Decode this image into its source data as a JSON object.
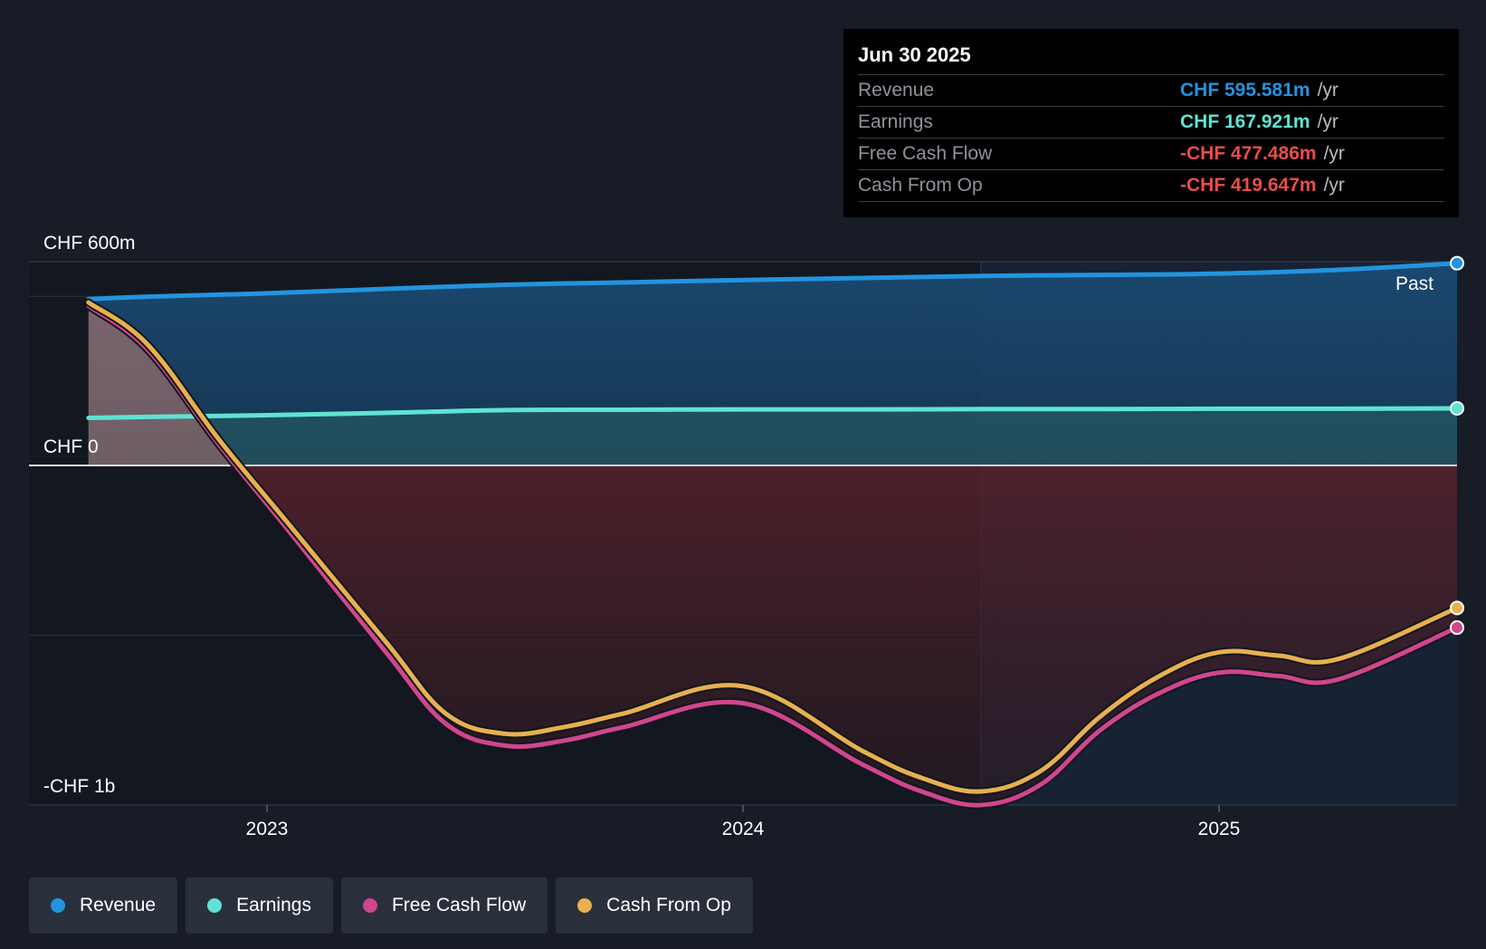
{
  "chart_data": {
    "type": "area",
    "currency": "CHF",
    "y_ticks": [
      {
        "value": 600,
        "label": "CHF 600m"
      },
      {
        "value": 0,
        "label": "CHF 0"
      },
      {
        "value": -1000,
        "label": "-CHF 1b"
      }
    ],
    "ylim": [
      -1000,
      600
    ],
    "xlim": [
      2022.5,
      2025.5
    ],
    "x_ticks": [
      {
        "value": 2023,
        "label": "2023"
      },
      {
        "value": 2024,
        "label": "2024"
      },
      {
        "value": 2025,
        "label": "2025"
      }
    ],
    "past_label": "Past",
    "forecast_start_x": 2024.5,
    "series": [
      {
        "key": "revenue",
        "name": "Revenue",
        "color": "#2394df",
        "fill": true,
        "points": [
          [
            2022.625,
            490
          ],
          [
            2022.75,
            497
          ],
          [
            2023.0,
            507
          ],
          [
            2023.25,
            520
          ],
          [
            2023.5,
            532
          ],
          [
            2023.75,
            539
          ],
          [
            2024.0,
            546
          ],
          [
            2024.25,
            552
          ],
          [
            2024.5,
            558
          ],
          [
            2024.75,
            561
          ],
          [
            2025.0,
            565
          ],
          [
            2025.25,
            576
          ],
          [
            2025.5,
            595.581
          ]
        ]
      },
      {
        "key": "earnings",
        "name": "Earnings",
        "color": "#5fe3d4",
        "fill": true,
        "points": [
          [
            2022.625,
            140
          ],
          [
            2022.75,
            143
          ],
          [
            2023.0,
            148
          ],
          [
            2023.25,
            155
          ],
          [
            2023.5,
            163
          ],
          [
            2023.75,
            164
          ],
          [
            2024.0,
            165
          ],
          [
            2024.25,
            165
          ],
          [
            2024.5,
            166
          ],
          [
            2024.75,
            166
          ],
          [
            2025.0,
            167
          ],
          [
            2025.25,
            167
          ],
          [
            2025.5,
            167.921
          ]
        ]
      },
      {
        "key": "fcf",
        "name": "Free Cash Flow",
        "color": "#d0468e",
        "fill": true,
        "points": [
          [
            2022.625,
            470
          ],
          [
            2022.75,
            340
          ],
          [
            2022.9,
            60
          ],
          [
            2023.05,
            -200
          ],
          [
            2023.25,
            -550
          ],
          [
            2023.375,
            -760
          ],
          [
            2023.5,
            -825
          ],
          [
            2023.625,
            -810
          ],
          [
            2023.75,
            -770
          ],
          [
            2024.0,
            -700
          ],
          [
            2024.25,
            -880
          ],
          [
            2024.375,
            -960
          ],
          [
            2024.5,
            -1000
          ],
          [
            2024.625,
            -940
          ],
          [
            2024.75,
            -780
          ],
          [
            2024.875,
            -670
          ],
          [
            2025.0,
            -610
          ],
          [
            2025.125,
            -620
          ],
          [
            2025.25,
            -630
          ],
          [
            2025.5,
            -477.486
          ]
        ]
      },
      {
        "key": "cfo",
        "name": "Cash From Op",
        "color": "#e8b04f",
        "fill": false,
        "points": [
          [
            2022.625,
            480
          ],
          [
            2022.75,
            355
          ],
          [
            2022.9,
            75
          ],
          [
            2023.05,
            -180
          ],
          [
            2023.25,
            -520
          ],
          [
            2023.375,
            -730
          ],
          [
            2023.5,
            -790
          ],
          [
            2023.625,
            -770
          ],
          [
            2023.75,
            -730
          ],
          [
            2024.0,
            -650
          ],
          [
            2024.25,
            -840
          ],
          [
            2024.375,
            -920
          ],
          [
            2024.5,
            -960
          ],
          [
            2024.625,
            -900
          ],
          [
            2024.75,
            -740
          ],
          [
            2024.875,
            -620
          ],
          [
            2025.0,
            -550
          ],
          [
            2025.125,
            -560
          ],
          [
            2025.25,
            -570
          ],
          [
            2025.5,
            -419.647
          ]
        ]
      }
    ]
  },
  "tooltip": {
    "date": "Jun 30 2025",
    "rows": [
      {
        "label": "Revenue",
        "value": "CHF 595.581m",
        "unit": "/yr",
        "color": "#2394df"
      },
      {
        "label": "Earnings",
        "value": "CHF 167.921m",
        "unit": "/yr",
        "color": "#5fe3d4"
      },
      {
        "label": "Free Cash Flow",
        "value": "-CHF 477.486m",
        "unit": "/yr",
        "color": "#e84d4d"
      },
      {
        "label": "Cash From Op",
        "value": "-CHF 419.647m",
        "unit": "/yr",
        "color": "#e84d4d"
      }
    ]
  },
  "legend": [
    {
      "label": "Revenue",
      "color": "#2394df"
    },
    {
      "label": "Earnings",
      "color": "#5fe3d4"
    },
    {
      "label": "Free Cash Flow",
      "color": "#d0468e"
    },
    {
      "label": "Cash From Op",
      "color": "#e8b04f"
    }
  ]
}
